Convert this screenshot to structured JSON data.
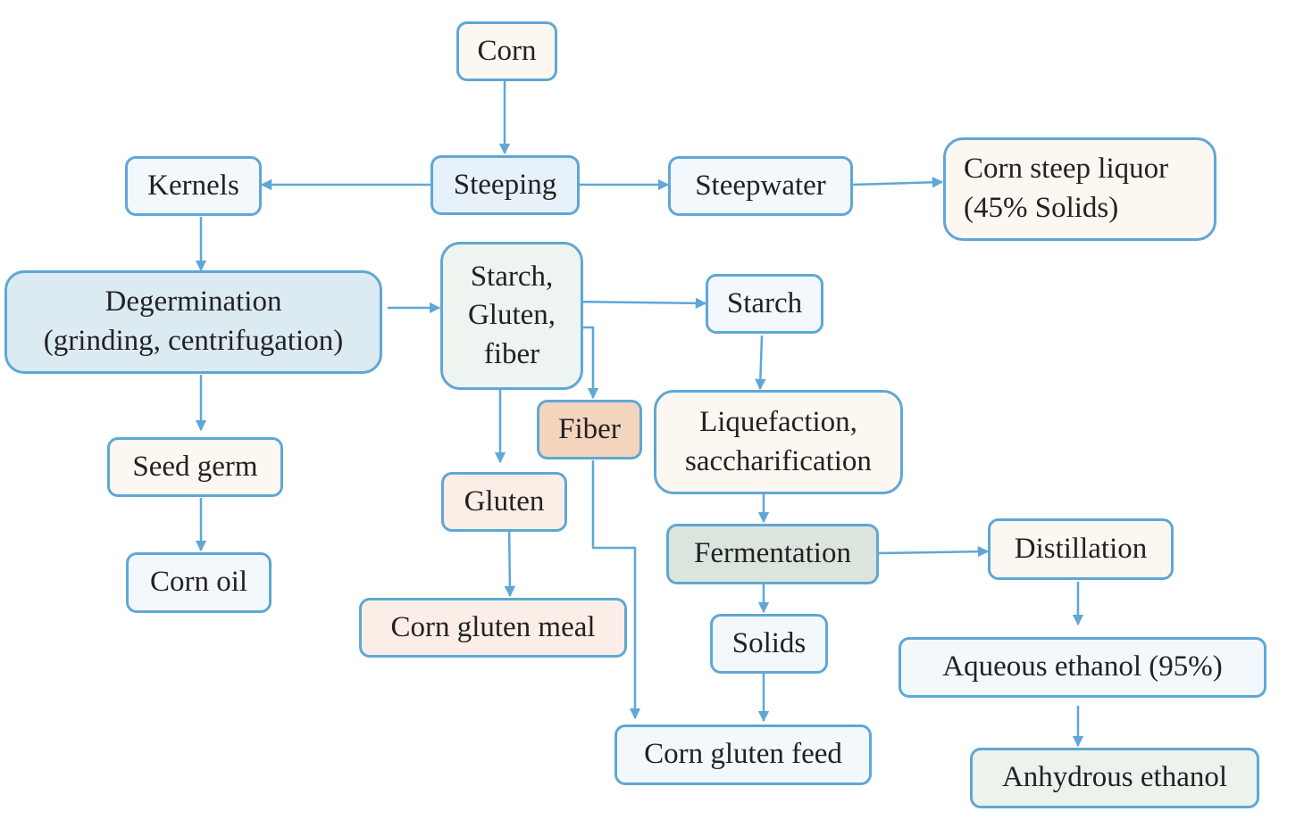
{
  "colors": {
    "border": "#5fa7d6",
    "edge": "#5fa7d6",
    "text": "#222222",
    "fill_cream": "#fdf7f2",
    "fill_lightblue": "#e6f1fa",
    "fill_paleblue": "#f3f8fc",
    "fill_degermination": "#dcebf2",
    "fill_mixture": "#eef4f0",
    "fill_fiber": "#f3d4bd",
    "fill_gluten": "#fbeee6",
    "fill_fermentation": "#dbe5de",
    "fill_anhydrous": "#ecf3ec"
  },
  "nodes": {
    "corn": "Corn",
    "steeping": "Steeping",
    "kernels": "Kernels",
    "steepwater": "Steepwater",
    "corn_steep_liquor": "Corn steep liquor\n(45% Solids)",
    "degermination": "Degermination\n(grinding, centrifugation)",
    "starch_gluten_fiber": "Starch,\nGluten,\nfiber",
    "starch": "Starch",
    "fiber": "Fiber",
    "liquefaction": "Liquefaction,\nsaccharification",
    "seed_germ": "Seed germ",
    "gluten": "Gluten",
    "fermentation": "Fermentation",
    "distillation": "Distillation",
    "corn_oil": "Corn oil",
    "corn_gluten_meal": "Corn gluten meal",
    "solids": "Solids",
    "aqueous_ethanol": "Aqueous ethanol (95%)",
    "corn_gluten_feed": "Corn gluten feed",
    "anhydrous_ethanol": "Anhydrous ethanol"
  }
}
